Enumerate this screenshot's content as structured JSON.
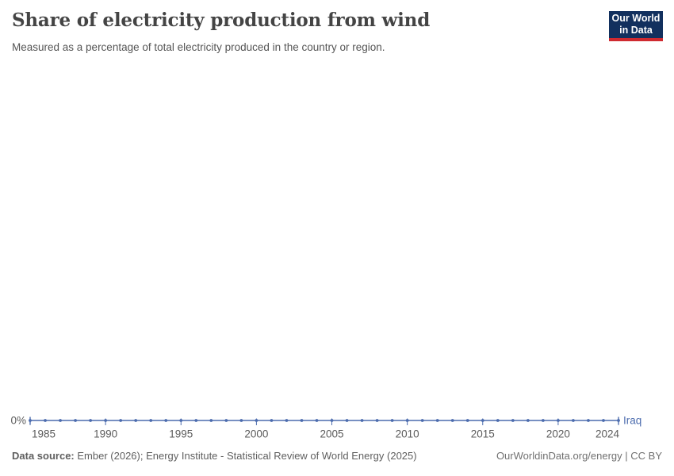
{
  "header": {
    "logo": {
      "line1": "Our World",
      "line2": "in Data"
    }
  },
  "chart_data": {
    "type": "line",
    "title": "Share of electricity production from wind",
    "subtitle": "Measured as a percentage of total electricity produced in the country or region.",
    "xlabel": "",
    "ylabel": "",
    "unit": "%",
    "y_tick_label": "0%",
    "ylim": [
      0,
      0
    ],
    "xlim": [
      1985,
      2024
    ],
    "grid": false,
    "legend_position": "end-of-line",
    "x_ticks": [
      1985,
      1990,
      1995,
      2000,
      2005,
      2010,
      2015,
      2020,
      2024
    ],
    "x": [
      1985,
      1986,
      1987,
      1988,
      1989,
      1990,
      1991,
      1992,
      1993,
      1994,
      1995,
      1996,
      1997,
      1998,
      1999,
      2000,
      2001,
      2002,
      2003,
      2004,
      2005,
      2006,
      2007,
      2008,
      2009,
      2010,
      2011,
      2012,
      2013,
      2014,
      2015,
      2016,
      2017,
      2018,
      2019,
      2020,
      2021,
      2022,
      2023,
      2024
    ],
    "series": [
      {
        "name": "Iraq",
        "color": "#4c6cae",
        "values": [
          0,
          0,
          0,
          0,
          0,
          0,
          0,
          0,
          0,
          0,
          0,
          0,
          0,
          0,
          0,
          0,
          0,
          0,
          0,
          0,
          0,
          0,
          0,
          0,
          0,
          0,
          0,
          0,
          0,
          0,
          0,
          0,
          0,
          0,
          0,
          0,
          0,
          0,
          0,
          0
        ]
      }
    ]
  },
  "footer": {
    "source_label": "Data source:",
    "source_text": "Ember (2026); Energy Institute - Statistical Review of World Energy (2025)",
    "attribution": "OurWorldinData.org/energy | CC BY"
  },
  "colors": {
    "line": "#4c6cae",
    "tick_text": "#5b5b5b",
    "title_text": "#444444",
    "subtitle_text": "#555555",
    "logo_bg": "#12305e",
    "logo_accent": "#cf2a30"
  }
}
